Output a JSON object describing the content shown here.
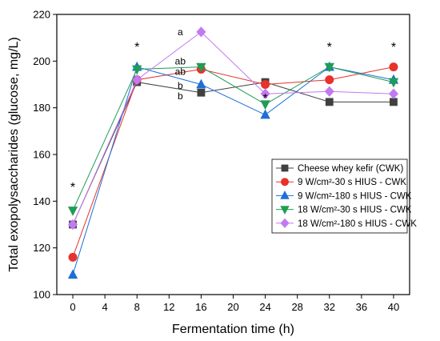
{
  "chart_data": {
    "type": "line",
    "xlabel": "Fermentation time (h)",
    "ylabel": "Total exopolysaccharides (glucose, mg/L)",
    "xlim": [
      -2,
      42
    ],
    "ylim": [
      100,
      220
    ],
    "xticks": [
      0,
      4,
      8,
      12,
      16,
      20,
      24,
      28,
      32,
      36,
      40
    ],
    "yticks": [
      100,
      120,
      140,
      160,
      180,
      200,
      220
    ],
    "x": [
      0,
      8,
      16,
      24,
      32,
      40
    ],
    "series": [
      {
        "name": "Cheese whey kefir (CWK)",
        "color": "#404040",
        "marker": "square",
        "values": [
          130,
          191,
          186.5,
          191,
          182.5,
          182.5
        ]
      },
      {
        "name": "9 W/cm²-30 s HIUS - CWK",
        "color": "#e8312b",
        "marker": "circle",
        "values": [
          116,
          192,
          196.5,
          190,
          192,
          197.5
        ]
      },
      {
        "name": "9 W/cm²-180 s HIUS - CWK",
        "color": "#1f6fd6",
        "marker": "triangle-up",
        "values": [
          108.5,
          197.5,
          190,
          177,
          197.5,
          192
        ]
      },
      {
        "name": "18 W/cm²-30 s HIUS - CWK",
        "color": "#1f9d55",
        "marker": "triangle-down",
        "values": [
          136,
          196.5,
          197.5,
          181.5,
          197.5,
          191
        ]
      },
      {
        "name": "18 W/cm²-180 s HIUS - CWK",
        "color": "#c27af0",
        "marker": "diamond",
        "values": [
          130,
          192,
          212.5,
          186,
          187,
          186
        ]
      }
    ],
    "annotations": [
      {
        "text": "*",
        "x": 0,
        "y": 147
      },
      {
        "text": "*",
        "x": 8,
        "y": 207
      },
      {
        "text": "*",
        "x": 24,
        "y": 185
      },
      {
        "text": "*",
        "x": 32,
        "y": 207
      },
      {
        "text": "*",
        "x": 40,
        "y": 207
      },
      {
        "text": "a",
        "x": 13.4,
        "y": 212.5
      },
      {
        "text": "ab",
        "x": 13.4,
        "y": 200
      },
      {
        "text": "ab",
        "x": 13.4,
        "y": 195.5
      },
      {
        "text": "b",
        "x": 13.4,
        "y": 189.5
      },
      {
        "text": "b",
        "x": 13.4,
        "y": 185
      }
    ],
    "legend_position": "right",
    "grid": false
  }
}
